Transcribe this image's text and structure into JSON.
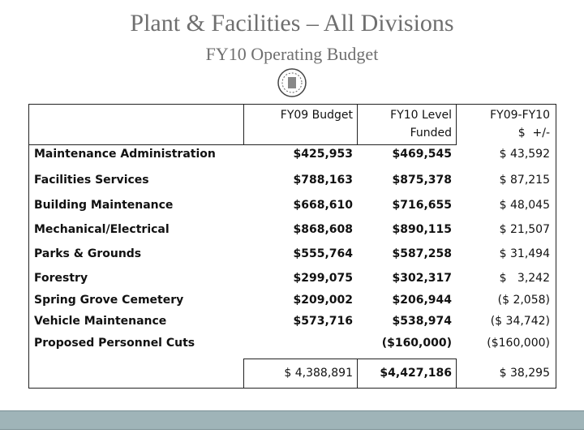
{
  "header": {
    "title": "Plant & Facilities – All Divisions",
    "subtitle": "FY10 Operating Budget"
  },
  "table": {
    "columns": [
      "FY09 Budget",
      [
        "FY10 Level",
        "Funded"
      ],
      [
        "FY09-FY10",
        "$  +/-"
      ]
    ],
    "rows": [
      [
        "Maintenance Administration",
        "$425,953",
        "$469,545",
        "$ 43,592"
      ],
      [
        "Facilities Services",
        "$788,163",
        "$875,378",
        "$ 87,215"
      ],
      [
        "Building Maintenance",
        "$668,610",
        "$716,655",
        "$ 48,045"
      ],
      [
        "Mechanical/Electrical",
        "$868,608",
        "$890,115",
        "$ 21,507"
      ],
      [
        "Parks & Grounds",
        "$555,764",
        "$587,258",
        "$ 31,494"
      ],
      [
        "Forestry",
        "$299,075",
        "$302,317",
        "$   3,242"
      ],
      [
        "Spring Grove Cemetery",
        "$209,002",
        "$206,944",
        "($ 2,058)"
      ],
      [
        "Vehicle Maintenance",
        "$573,716",
        "$538,974",
        "($ 34,742)"
      ],
      [
        "Proposed Personnel Cuts",
        null,
        "($160,000)",
        "($160,000)"
      ]
    ],
    "total": [
      "$ 4,388,891",
      "$4,427,186",
      "$ 38,295"
    ]
  }
}
